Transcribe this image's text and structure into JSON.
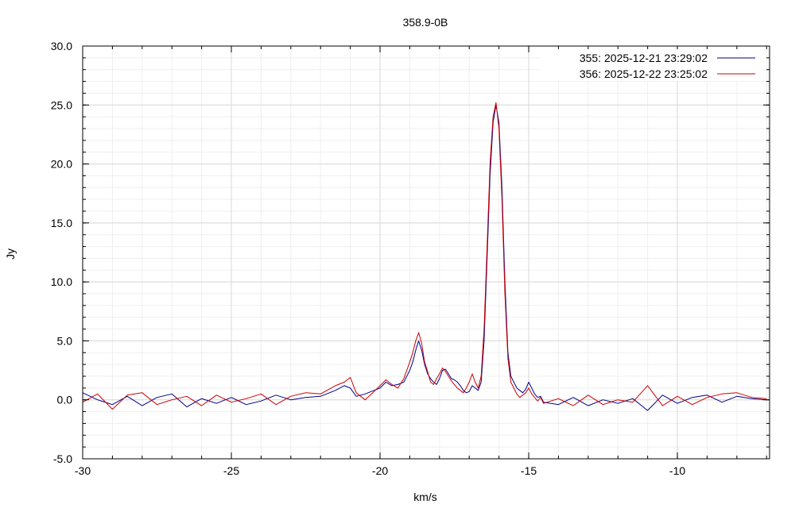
{
  "chart_data": {
    "type": "line",
    "title": "358.9-0B",
    "xlabel": "km/s",
    "ylabel": "Jy",
    "xlim": [
      -30,
      -6.9
    ],
    "ylim": [
      -5,
      30
    ],
    "x_ticks": [
      "-30",
      "-25",
      "-20",
      "-15",
      "-10"
    ],
    "x_tick_values": [
      -30,
      -25,
      -20,
      -15,
      -10
    ],
    "y_ticks": [
      "-5.0",
      "0.0",
      "5.0",
      "10.0",
      "15.0",
      "20.0",
      "25.0",
      "30.0"
    ],
    "y_tick_values": [
      -5,
      0,
      5,
      10,
      15,
      20,
      25,
      30
    ],
    "grid": true,
    "legend_position": "top-right",
    "series": [
      {
        "id": "355",
        "name": "355:   2025-12-21 23:29:02",
        "color": "#00008b",
        "x": [
          -30.0,
          -29.5,
          -29.0,
          -28.5,
          -28.0,
          -27.5,
          -27.0,
          -26.5,
          -26.0,
          -25.5,
          -25.0,
          -24.5,
          -24.0,
          -23.5,
          -23.0,
          -22.5,
          -22.0,
          -21.5,
          -21.2,
          -21.0,
          -20.8,
          -20.5,
          -20.2,
          -20.0,
          -19.8,
          -19.6,
          -19.4,
          -19.2,
          -19.0,
          -18.9,
          -18.8,
          -18.7,
          -18.6,
          -18.5,
          -18.4,
          -18.3,
          -18.2,
          -18.1,
          -18.0,
          -17.9,
          -17.8,
          -17.7,
          -17.6,
          -17.5,
          -17.4,
          -17.3,
          -17.2,
          -17.1,
          -17.0,
          -16.9,
          -16.8,
          -16.7,
          -16.6,
          -16.5,
          -16.4,
          -16.3,
          -16.2,
          -16.1,
          -16.0,
          -15.9,
          -15.8,
          -15.7,
          -15.6,
          -15.5,
          -15.4,
          -15.3,
          -15.2,
          -15.1,
          -15.0,
          -14.9,
          -14.8,
          -14.7,
          -14.6,
          -14.5,
          -14.0,
          -13.5,
          -13.0,
          -12.5,
          -12.0,
          -11.5,
          -11.0,
          -10.5,
          -10.0,
          -9.5,
          -9.0,
          -8.5,
          -8.0,
          -7.5,
          -7.0
        ],
        "y": [
          0.6,
          0.0,
          -0.4,
          0.3,
          -0.5,
          0.2,
          0.5,
          -0.6,
          0.1,
          -0.3,
          0.2,
          -0.4,
          -0.1,
          0.4,
          0.0,
          0.2,
          0.3,
          0.8,
          1.2,
          1.0,
          0.3,
          0.5,
          0.8,
          1.0,
          1.5,
          1.2,
          1.3,
          1.5,
          2.5,
          3.2,
          4.2,
          5.0,
          4.2,
          3.0,
          2.2,
          1.8,
          1.5,
          1.3,
          1.8,
          2.5,
          2.6,
          2.2,
          1.8,
          1.7,
          1.5,
          1.2,
          0.8,
          0.6,
          0.7,
          1.2,
          1.0,
          0.8,
          1.5,
          5.0,
          12.0,
          19.0,
          23.5,
          25.0,
          23.5,
          18.0,
          10.0,
          4.0,
          2.0,
          1.5,
          1.0,
          0.8,
          0.6,
          0.9,
          1.5,
          1.0,
          0.5,
          0.2,
          0.3,
          -0.2,
          -0.4,
          0.2,
          -0.5,
          0.0,
          -0.3,
          0.1,
          -0.9,
          0.4,
          -0.3,
          0.2,
          0.4,
          -0.2,
          0.3,
          0.1,
          0.0
        ]
      },
      {
        "id": "356",
        "name": "356:   2025-12-22 23:25:02",
        "color": "#cc0000",
        "x": [
          -30.0,
          -29.5,
          -29.0,
          -28.5,
          -28.0,
          -27.5,
          -27.0,
          -26.5,
          -26.0,
          -25.5,
          -25.0,
          -24.5,
          -24.0,
          -23.5,
          -23.0,
          -22.5,
          -22.0,
          -21.5,
          -21.2,
          -21.0,
          -20.8,
          -20.5,
          -20.2,
          -20.0,
          -19.8,
          -19.6,
          -19.4,
          -19.2,
          -19.0,
          -18.9,
          -18.8,
          -18.7,
          -18.6,
          -18.5,
          -18.4,
          -18.3,
          -18.2,
          -18.1,
          -18.0,
          -17.9,
          -17.8,
          -17.7,
          -17.6,
          -17.5,
          -17.4,
          -17.3,
          -17.2,
          -17.1,
          -17.0,
          -16.9,
          -16.8,
          -16.7,
          -16.6,
          -16.5,
          -16.4,
          -16.3,
          -16.2,
          -16.1,
          -16.0,
          -15.9,
          -15.8,
          -15.7,
          -15.6,
          -15.5,
          -15.4,
          -15.3,
          -15.2,
          -15.1,
          -15.0,
          -14.9,
          -14.8,
          -14.7,
          -14.6,
          -14.5,
          -14.0,
          -13.5,
          -13.0,
          -12.5,
          -12.0,
          -11.5,
          -11.0,
          -10.5,
          -10.0,
          -9.5,
          -9.0,
          -8.5,
          -8.0,
          -7.5,
          -7.0
        ],
        "y": [
          -0.2,
          0.5,
          -0.8,
          0.4,
          0.6,
          -0.4,
          0.0,
          0.3,
          -0.5,
          0.4,
          -0.2,
          0.1,
          0.5,
          -0.4,
          0.3,
          0.6,
          0.5,
          1.2,
          1.5,
          1.9,
          0.6,
          0.0,
          0.7,
          1.2,
          1.7,
          1.3,
          1.0,
          1.8,
          3.2,
          4.0,
          5.0,
          5.7,
          4.8,
          3.2,
          2.4,
          1.5,
          1.3,
          1.8,
          2.2,
          2.7,
          2.4,
          2.0,
          1.6,
          1.3,
          1.0,
          0.8,
          0.6,
          1.0,
          1.5,
          2.2,
          1.5,
          1.0,
          2.0,
          6.0,
          13.0,
          20.0,
          24.0,
          25.2,
          23.0,
          17.0,
          9.0,
          3.5,
          1.5,
          1.0,
          0.5,
          0.2,
          0.4,
          0.6,
          1.0,
          0.5,
          0.2,
          -0.1,
          0.2,
          -0.3,
          0.1,
          -0.5,
          0.4,
          -0.4,
          0.0,
          -0.2,
          1.2,
          -0.5,
          0.3,
          -0.4,
          0.2,
          0.5,
          0.6,
          0.2,
          0.1
        ]
      }
    ]
  }
}
